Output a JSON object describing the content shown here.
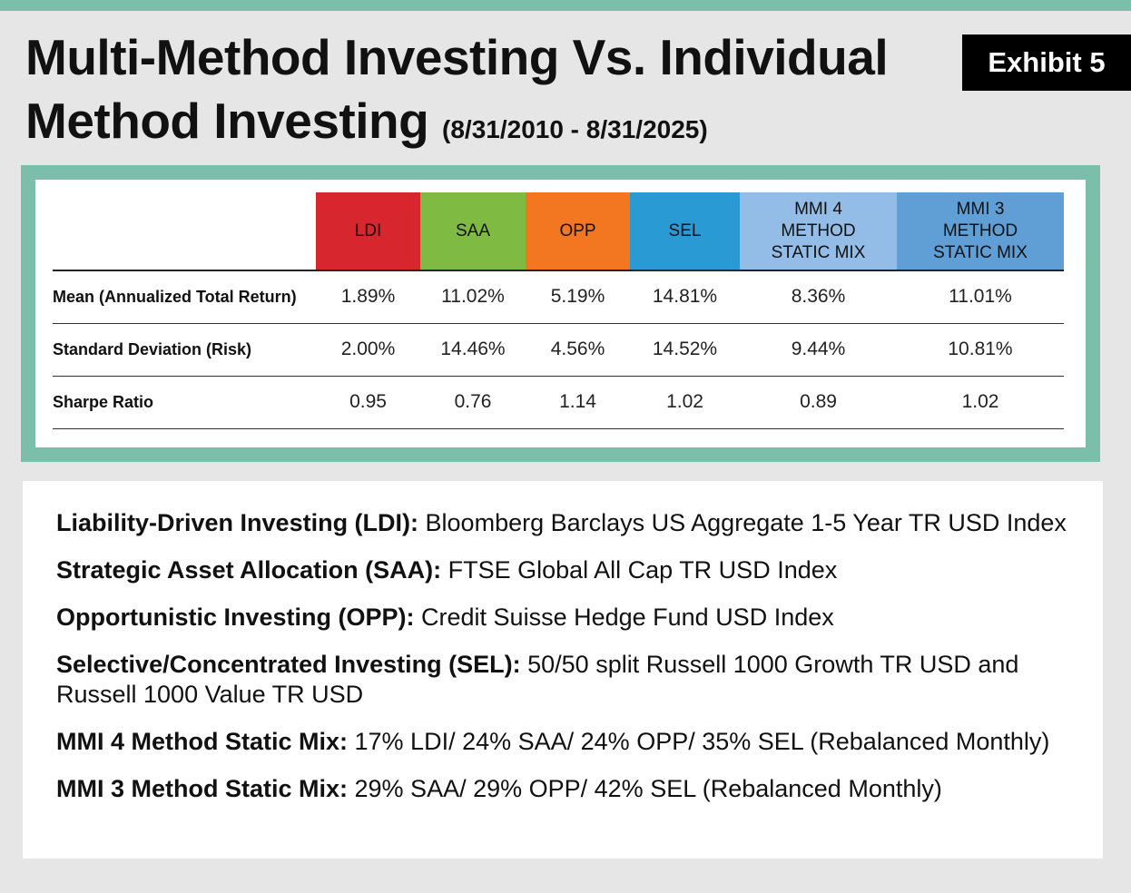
{
  "title": {
    "line1": "Multi-Method Investing Vs. Individual",
    "line2": "Method Investing",
    "period": "(8/31/2010 - 8/31/2025)"
  },
  "exhibit": "Exhibit 5",
  "colors": {
    "frame": "#7bbfaa",
    "LDI": "#d7262e",
    "SAA": "#7fbb43",
    "OPP": "#f37721",
    "SEL": "#2a9ad4",
    "MMI4": "#93bde6",
    "MMI3": "#5f9fd6"
  },
  "chart_data": {
    "type": "table",
    "columns": [
      "LDI",
      "SAA",
      "OPP",
      "SEL",
      "MMI 4 METHOD STATIC MIX",
      "MMI 3 METHOD STATIC MIX"
    ],
    "rows": [
      {
        "label": "Mean (Annualized Total Return)",
        "values": [
          "1.89%",
          "11.02%",
          "5.19%",
          "14.81%",
          "8.36%",
          "11.01%"
        ]
      },
      {
        "label": "Standard Deviation (Risk)",
        "values": [
          "2.00%",
          "14.46%",
          "4.56%",
          "14.52%",
          "9.44%",
          "10.81%"
        ]
      },
      {
        "label": "Sharpe Ratio",
        "values": [
          "0.95",
          "0.76",
          "1.14",
          "1.02",
          "0.89",
          "1.02"
        ]
      }
    ]
  },
  "notes": [
    {
      "term": "Liability-Driven Investing (LDI):",
      "desc": " Bloomberg Barclays US Aggregate 1-5 Year TR USD Index"
    },
    {
      "term": "Strategic Asset Allocation (SAA):",
      "desc": " FTSE Global All Cap TR USD Index"
    },
    {
      "term": "Opportunistic Investing (OPP):",
      "desc": " Credit Suisse Hedge Fund USD Index"
    },
    {
      "term": "Selective/Concentrated Investing (SEL):",
      "desc": " 50/50 split Russell 1000 Growth TR USD and Russell 1000 Value TR USD"
    },
    {
      "term": "MMI 4 Method Static Mix:",
      "desc": " 17% LDI/ 24% SAA/ 24% OPP/ 35% SEL (Rebalanced Monthly)"
    },
    {
      "term": "MMI 3 Method Static Mix:",
      "desc": " 29% SAA/ 29% OPP/ 42% SEL (Rebalanced Monthly)"
    }
  ]
}
